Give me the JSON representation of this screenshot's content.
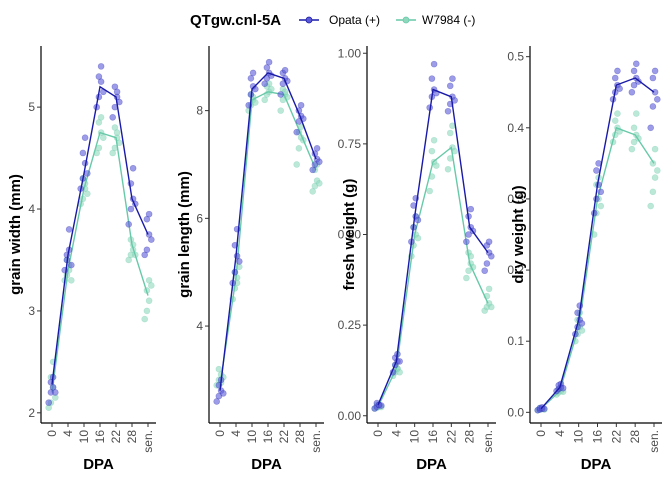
{
  "legend": {
    "title": "QTgw.cnl-5A",
    "placement": "top",
    "entries": [
      {
        "label": "Opata (+)",
        "color": "#1a1aa8",
        "point_color": "#5a5ad8"
      },
      {
        "label": "W7984 (-)",
        "color": "#66c9a8",
        "point_color": "#8fd8be"
      }
    ]
  },
  "chart_data": [
    {
      "type": "line",
      "title": "",
      "xlabel": "DPA",
      "ylabel": "grain width (mm)",
      "x": [
        "0",
        "4",
        "10",
        "16",
        "22",
        "28",
        "sen."
      ],
      "ylim": [
        1.9,
        5.6
      ],
      "yticks": [
        "2",
        "3",
        "4",
        "5"
      ],
      "series": [
        {
          "name": "Opata (+)",
          "means": [
            2.28,
            3.55,
            4.35,
            5.2,
            5.1,
            4.1,
            3.75
          ],
          "points": [
            [
              2.1,
              2.2,
              2.25,
              2.3,
              2.35,
              2.2
            ],
            [
              3.4,
              3.5,
              3.6,
              3.55,
              3.8,
              3.45
            ],
            [
              4.2,
              4.3,
              4.45,
              4.55,
              4.7,
              4.35
            ],
            [
              5.0,
              5.1,
              5.25,
              5.3,
              5.4,
              5.15
            ],
            [
              4.9,
              5.0,
              5.1,
              5.2,
              5.15,
              5.05
            ],
            [
              3.85,
              4.0,
              4.1,
              4.25,
              4.4,
              4.05
            ],
            [
              3.55,
              3.6,
              3.75,
              3.9,
              3.95,
              3.7
            ]
          ]
        },
        {
          "name": "W7984 (-)",
          "means": [
            2.2,
            3.4,
            4.2,
            4.75,
            4.7,
            3.65,
            3.15
          ],
          "points": [
            [
              2.05,
              2.1,
              2.25,
              2.35,
              2.5,
              2.15
            ],
            [
              3.3,
              3.35,
              3.45,
              3.5,
              3.4,
              3.3
            ],
            [
              4.05,
              4.1,
              4.25,
              4.3,
              4.2,
              4.15
            ],
            [
              4.55,
              4.6,
              4.75,
              4.85,
              4.9,
              4.7
            ],
            [
              4.55,
              4.6,
              4.7,
              4.8,
              4.75,
              4.65
            ],
            [
              3.5,
              3.55,
              3.65,
              3.7,
              3.6,
              3.55
            ],
            [
              2.92,
              3.0,
              3.1,
              3.2,
              3.3,
              3.25
            ]
          ]
        }
      ]
    },
    {
      "type": "line",
      "title": "",
      "xlabel": "DPA",
      "ylabel": "grain length (mm)",
      "x": [
        "0",
        "4",
        "10",
        "16",
        "22",
        "28",
        "sen."
      ],
      "ylim": [
        2.2,
        9.2
      ],
      "yticks": [
        "4",
        "6",
        "8"
      ],
      "series": [
        {
          "name": "Opata (+)",
          "means": [
            2.8,
            5.3,
            8.4,
            8.7,
            8.6,
            7.9,
            7.1
          ],
          "points": [
            [
              2.6,
              2.7,
              2.8,
              2.9,
              3.0,
              2.75
            ],
            [
              4.8,
              5.0,
              5.3,
              5.5,
              5.8,
              5.2
            ],
            [
              8.1,
              8.3,
              8.45,
              8.6,
              8.7,
              8.4
            ],
            [
              8.5,
              8.6,
              8.7,
              8.8,
              8.9,
              8.65
            ],
            [
              8.3,
              8.5,
              8.6,
              8.7,
              8.75,
              8.55
            ],
            [
              7.6,
              7.8,
              7.9,
              8.0,
              8.1,
              7.85
            ],
            [
              6.9,
              7.0,
              7.1,
              7.2,
              7.3,
              7.05
            ]
          ]
        },
        {
          "name": "W7984 (-)",
          "means": [
            2.9,
            4.9,
            8.2,
            8.35,
            8.3,
            7.6,
            6.9
          ],
          "points": [
            [
              2.9,
              3.0,
              3.1,
              3.2,
              2.95,
              3.05
            ],
            [
              4.5,
              4.7,
              4.9,
              5.0,
              4.8,
              5.1
            ],
            [
              8.0,
              8.1,
              8.2,
              8.3,
              8.25,
              8.15
            ],
            [
              8.2,
              8.3,
              8.35,
              8.45,
              8.5,
              8.4
            ],
            [
              8.0,
              8.2,
              8.3,
              8.4,
              8.35,
              8.25
            ],
            [
              7.0,
              7.3,
              7.5,
              7.6,
              7.7,
              7.45
            ],
            [
              6.5,
              6.6,
              6.7,
              6.9,
              7.0,
              6.65
            ]
          ]
        }
      ]
    },
    {
      "type": "line",
      "title": "",
      "xlabel": "DPA",
      "ylabel": "fresh weight (g)",
      "x": [
        "0",
        "4",
        "10",
        "16",
        "22",
        "28",
        "sen."
      ],
      "ylim": [
        -0.02,
        1.02
      ],
      "yticks": [
        "0.00",
        "0.25",
        "0.50",
        "0.75",
        "1.00"
      ],
      "series": [
        {
          "name": "Opata (+)",
          "means": [
            0.03,
            0.15,
            0.55,
            0.9,
            0.88,
            0.52,
            0.45
          ],
          "points": [
            [
              0.02,
              0.025,
              0.03,
              0.035,
              0.03,
              0.028
            ],
            [
              0.12,
              0.14,
              0.15,
              0.16,
              0.17,
              0.15
            ],
            [
              0.48,
              0.52,
              0.55,
              0.58,
              0.6,
              0.54
            ],
            [
              0.85,
              0.88,
              0.9,
              0.93,
              0.97,
              0.89
            ],
            [
              0.84,
              0.86,
              0.88,
              0.91,
              0.93,
              0.87
            ],
            [
              0.48,
              0.5,
              0.52,
              0.55,
              0.57,
              0.51
            ],
            [
              0.4,
              0.42,
              0.45,
              0.47,
              0.48,
              0.44
            ]
          ]
        },
        {
          "name": "W7984 (-)",
          "means": [
            0.025,
            0.13,
            0.5,
            0.7,
            0.74,
            0.42,
            0.31
          ],
          "points": [
            [
              0.02,
              0.022,
              0.025,
              0.03,
              0.028,
              0.024
            ],
            [
              0.11,
              0.12,
              0.13,
              0.14,
              0.13,
              0.12
            ],
            [
              0.44,
              0.47,
              0.5,
              0.52,
              0.55,
              0.49
            ],
            [
              0.62,
              0.66,
              0.7,
              0.73,
              0.76,
              0.69
            ],
            [
              0.68,
              0.71,
              0.74,
              0.78,
              0.8,
              0.73
            ],
            [
              0.38,
              0.4,
              0.42,
              0.45,
              0.44,
              0.41
            ],
            [
              0.29,
              0.3,
              0.31,
              0.33,
              0.35,
              0.3
            ]
          ]
        }
      ]
    },
    {
      "type": "line",
      "title": "",
      "xlabel": "DPA",
      "ylabel": "dry weight (g)",
      "x": [
        "0",
        "4",
        "10",
        "16",
        "22",
        "28",
        "sen."
      ],
      "ylim": [
        -0.015,
        0.515
      ],
      "yticks": [
        "0.0",
        "0.1",
        "0.2",
        "0.3",
        "0.4",
        "0.5"
      ],
      "series": [
        {
          "name": "Opata (+)",
          "means": [
            0.005,
            0.035,
            0.13,
            0.32,
            0.46,
            0.47,
            0.45
          ],
          "points": [
            [
              0.003,
              0.004,
              0.005,
              0.006,
              0.007,
              0.005
            ],
            [
              0.03,
              0.033,
              0.035,
              0.038,
              0.04,
              0.034
            ],
            [
              0.11,
              0.12,
              0.13,
              0.14,
              0.15,
              0.125
            ],
            [
              0.28,
              0.3,
              0.32,
              0.34,
              0.35,
              0.31
            ],
            [
              0.44,
              0.45,
              0.46,
              0.47,
              0.48,
              0.455
            ],
            [
              0.45,
              0.46,
              0.47,
              0.48,
              0.49,
              0.465
            ],
            [
              0.4,
              0.43,
              0.45,
              0.47,
              0.48,
              0.44
            ]
          ]
        },
        {
          "name": "W7984 (-)",
          "means": [
            0.005,
            0.03,
            0.12,
            0.3,
            0.4,
            0.39,
            0.35
          ],
          "points": [
            [
              0.003,
              0.004,
              0.005,
              0.006,
              0.005,
              0.004
            ],
            [
              0.025,
              0.028,
              0.03,
              0.032,
              0.035,
              0.029
            ],
            [
              0.1,
              0.11,
              0.12,
              0.13,
              0.14,
              0.115
            ],
            [
              0.25,
              0.28,
              0.3,
              0.32,
              0.33,
              0.29
            ],
            [
              0.38,
              0.39,
              0.4,
              0.41,
              0.42,
              0.395
            ],
            [
              0.37,
              0.38,
              0.39,
              0.4,
              0.42,
              0.385
            ],
            [
              0.29,
              0.31,
              0.33,
              0.35,
              0.37,
              0.34
            ]
          ]
        }
      ]
    }
  ]
}
